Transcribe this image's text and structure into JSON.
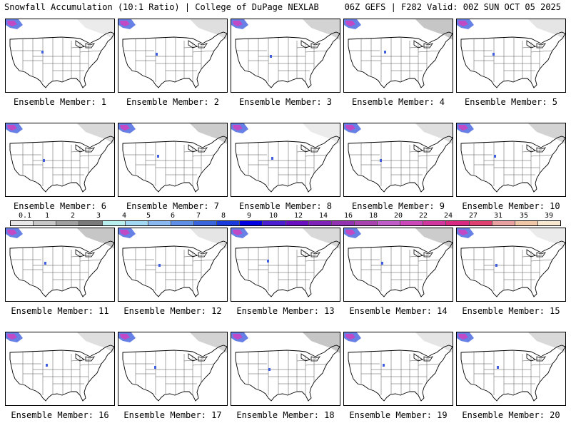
{
  "header": {
    "title_left": "Snowfall Accumulation (10:1 Ratio) | College of DuPage NEXLAB",
    "title_right": "06Z GEFS | F282 Valid: 00Z SUN OCT 05 2025"
  },
  "colorbar": {
    "labels": [
      "0.1",
      "1",
      "2",
      "3",
      "4",
      "5",
      "6",
      "7",
      "8",
      "9",
      "10",
      "12",
      "14",
      "16",
      "18",
      "20",
      "22",
      "24",
      "27",
      "31",
      "35",
      "39"
    ],
    "colors": [
      "#e8e8e8",
      "#c8c8c8",
      "#a0a0a0",
      "#7a7a7a",
      "#b9f0ef",
      "#a3d8f5",
      "#8ab8f0",
      "#5e8ee6",
      "#3a64dc",
      "#1a3adc",
      "#0000e0",
      "#4b1fd0",
      "#6a0fc0",
      "#7f22b8",
      "#9232b0",
      "#a742ae",
      "#c05cc8",
      "#cc47b8",
      "#d0369e",
      "#d82a82",
      "#e04070",
      "#e8a0a0",
      "#f0c8a8",
      "#f8e8d0"
    ]
  },
  "captions": {
    "prefix": "Ensemble Member: ",
    "members": [
      "1",
      "2",
      "3",
      "4",
      "5",
      "6",
      "7",
      "8",
      "9",
      "10",
      "11",
      "12",
      "13",
      "14",
      "15",
      "16",
      "17",
      "18",
      "19",
      "20"
    ]
  },
  "colors": {
    "border": "#000000",
    "state_lines": "#555555",
    "snow_gray": "#9a9a9a",
    "snow_blue": "#4060e0",
    "snow_magenta": "#d040c0"
  }
}
